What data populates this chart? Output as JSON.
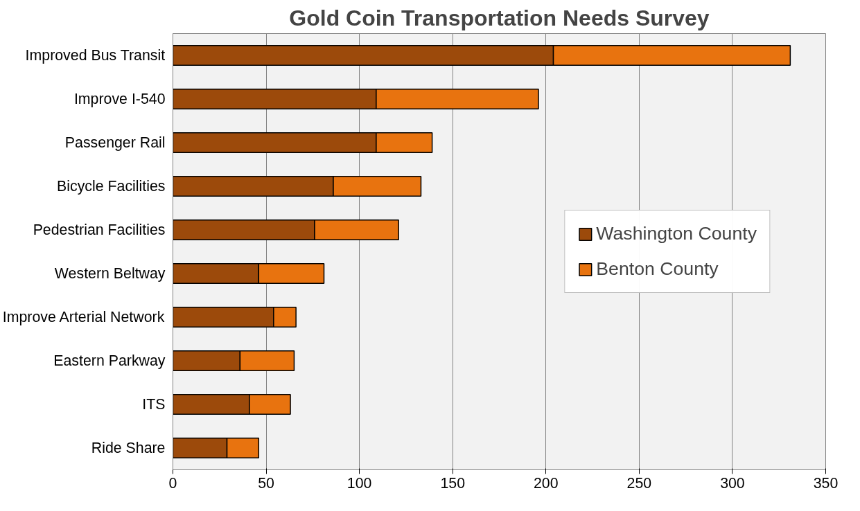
{
  "chart_data": {
    "type": "bar",
    "orientation": "horizontal",
    "stacked": true,
    "title": "Gold Coin Transportation Needs Survey",
    "categories": [
      "Improved Bus Transit",
      "Improve I-540",
      "Passenger Rail",
      "Bicycle Facilities",
      "Pedestrian Facilities",
      "Western Beltway",
      "Improve Arterial Network",
      "Eastern Parkway",
      "ITS",
      "Ride Share"
    ],
    "series": [
      {
        "name": "Washington County",
        "color": "#9c4a0b",
        "values": [
          204,
          109,
          109,
          86,
          76,
          46,
          54,
          36,
          41,
          29
        ]
      },
      {
        "name": "Benton County",
        "color": "#e8730f",
        "values": [
          127,
          87,
          30,
          47,
          45,
          35,
          12,
          29,
          22,
          17
        ]
      }
    ],
    "xlim": [
      0,
      350
    ],
    "xticks": [
      0,
      50,
      100,
      150,
      200,
      250,
      300,
      350
    ],
    "grid": "x",
    "legend": "right"
  }
}
